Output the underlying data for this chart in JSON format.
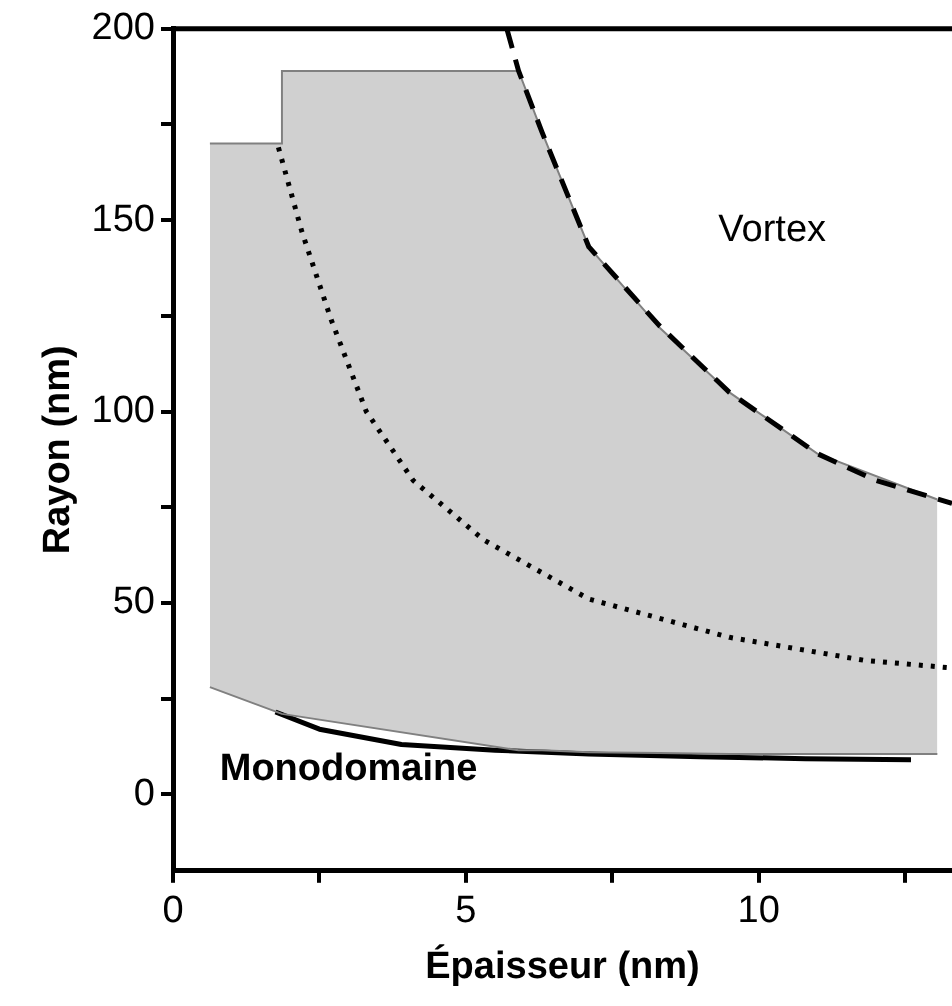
{
  "chart_data": {
    "type": "line",
    "xlabel": "Épaisseur (nm)",
    "ylabel": "Rayon (nm)",
    "xlim": [
      0,
      13.3
    ],
    "xticks": [
      0,
      {
        "value": 2.5,
        "label": null
      },
      5,
      {
        "value": 7.5,
        "label": null
      },
      10,
      {
        "value": 12.5,
        "label": null
      }
    ],
    "ylim": [
      -20,
      200
    ],
    "yticks": [
      0,
      {
        "value": 25,
        "label": null
      },
      50,
      {
        "value": 75,
        "label": null
      },
      100,
      {
        "value": 125,
        "label": null
      },
      150,
      {
        "value": 175,
        "label": null
      },
      200
    ],
    "grid": false,
    "legend": false,
    "marker": "none",
    "series": [
      {
        "type": "area",
        "color": "#d0d0d0",
        "x": [
          0.63,
          1.86,
          1.86,
          5.9,
          6.3,
          7.1,
          8.3,
          9.5,
          11.0,
          13.05
        ],
        "values": [
          170,
          170,
          189,
          189,
          173,
          143,
          122,
          105,
          89,
          77
        ]
      },
      {
        "type": "line",
        "color": "#808080",
        "x": [
          0.63,
          1.86,
          5.9,
          6.3,
          7.1,
          8.3,
          9.5,
          11.0,
          13.05
        ],
        "values": [
          28,
          21,
          11.5,
          11.5,
          11,
          10.8,
          10.5,
          10.5,
          10.5
        ]
      },
      {
        "type": "line",
        "color": "#000000",
        "line_style": "dashed",
        "x": [
          5.7,
          5.9,
          6.3,
          7.1,
          8.3,
          9.5,
          11.0,
          12.0,
          13.3
        ],
        "values": [
          200,
          189,
          173,
          143,
          122.5,
          105,
          89,
          82,
          76
        ]
      },
      {
        "type": "line",
        "color": "#000000",
        "line_style": "dotted",
        "x": [
          1.8,
          2.2,
          2.7,
          3.3,
          4.1,
          5.3,
          7.1,
          9.5,
          11.8,
          13.3
        ],
        "values": [
          169,
          147,
          124,
          100,
          82,
          66.5,
          51,
          41,
          35,
          33
        ]
      },
      {
        "type": "line",
        "color": "#000000",
        "line_style": "solid",
        "x": [
          1.75,
          2.5,
          3.9,
          5.5,
          7.1,
          9.0,
          10.8,
          12.6
        ],
        "values": [
          21.5,
          17,
          13,
          11.5,
          10.5,
          9.8,
          9.3,
          9
        ]
      }
    ],
    "annotations": [
      "Vortex",
      "Monodomaine"
    ]
  }
}
